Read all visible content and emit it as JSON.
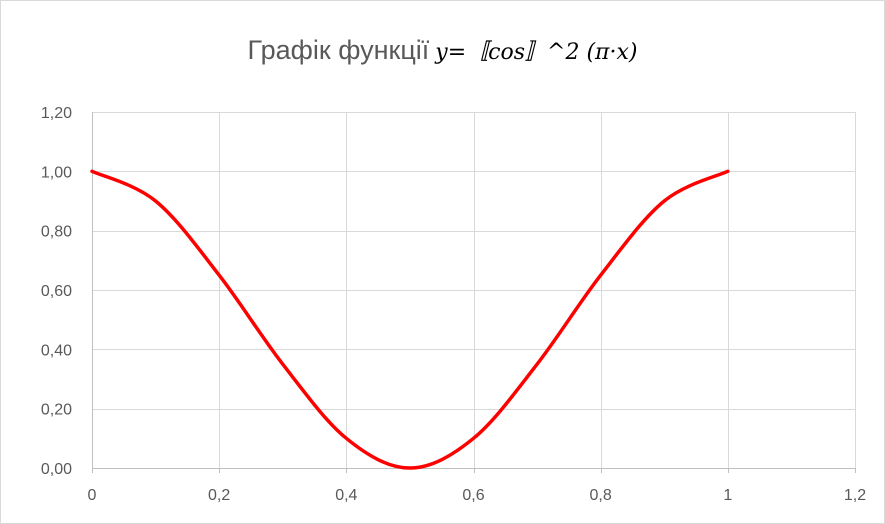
{
  "chart_data": {
    "type": "scatter",
    "title": "Графік функції",
    "title_formula": "y=〚cos〛^2 (π·x)",
    "xlabel": "",
    "ylabel": "",
    "xlim": [
      0,
      1.2
    ],
    "ylim": [
      0,
      1.2
    ],
    "x_ticks": [
      0,
      0.2,
      0.4,
      0.6,
      0.8,
      1.0,
      1.2
    ],
    "x_tick_labels": [
      "0",
      "0,2",
      "0,4",
      "0,6",
      "0,8",
      "1",
      "1,2"
    ],
    "y_ticks": [
      0,
      0.2,
      0.4,
      0.6,
      0.8,
      1.0,
      1.2
    ],
    "y_tick_labels": [
      "0,00",
      "0,20",
      "0,40",
      "0,60",
      "0,80",
      "1,00",
      "1,20"
    ],
    "grid": true,
    "legend": "none",
    "series": [
      {
        "color": "#ff0000",
        "smooth": true,
        "markers": false,
        "x": [
          0,
          0.1,
          0.2,
          0.3,
          0.4,
          0.5,
          0.6,
          0.7,
          0.8,
          0.9,
          1.0
        ],
        "y": [
          1.0,
          0.9,
          0.65,
          0.35,
          0.1,
          0.0,
          0.1,
          0.35,
          0.65,
          0.9,
          1.0
        ]
      }
    ]
  }
}
